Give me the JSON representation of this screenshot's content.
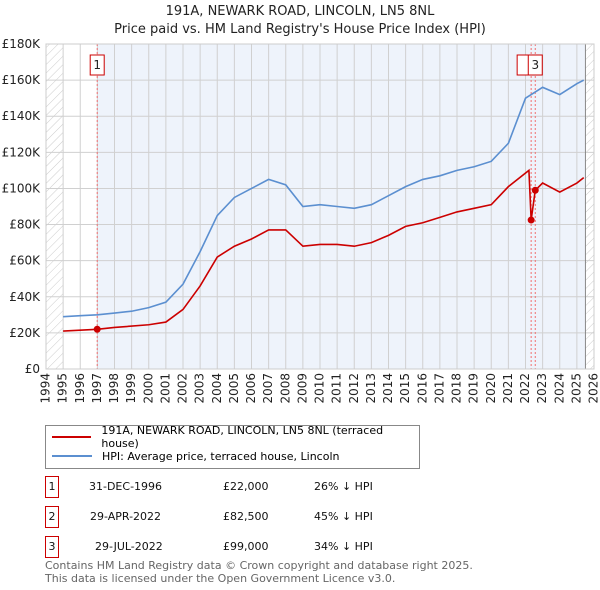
{
  "title": "191A, NEWARK ROAD, LINCOLN, LN5 8NL",
  "subtitle": "Price paid vs. HM Land Registry's House Price Index (HPI)",
  "chart_data": {
    "type": "line",
    "xlim": [
      1994,
      2026
    ],
    "ylim": [
      0,
      180000
    ],
    "x_ticks": [
      "1994",
      "1995",
      "1996",
      "1997",
      "1998",
      "1999",
      "2000",
      "2001",
      "2002",
      "2003",
      "2004",
      "2005",
      "2006",
      "2007",
      "2008",
      "2009",
      "2010",
      "2011",
      "2012",
      "2013",
      "2014",
      "2015",
      "2016",
      "2017",
      "2018",
      "2019",
      "2020",
      "2021",
      "2022",
      "2023",
      "2024",
      "2025",
      "2026"
    ],
    "y_ticks": [
      "£0",
      "£20K",
      "£40K",
      "£60K",
      "£80K",
      "£100K",
      "£120K",
      "£140K",
      "£160K",
      "£180K"
    ],
    "series": [
      {
        "name": "191A, NEWARK ROAD, LINCOLN, LN5 8NL (terraced house)",
        "color": "#cc0000",
        "x": [
          1995,
          1996.99,
          1998,
          2000,
          2001,
          2002,
          2003,
          2004,
          2005,
          2006,
          2007,
          2008,
          2009,
          2010,
          2011,
          2012,
          2013,
          2014,
          2015,
          2016,
          2017,
          2018,
          2019,
          2020,
          2021,
          2022.2,
          2022.33,
          2022.57,
          2023,
          2024,
          2025,
          2025.4
        ],
        "y": [
          21000,
          22000,
          23000,
          24500,
          26000,
          33000,
          46000,
          62000,
          68000,
          72000,
          77000,
          77000,
          68000,
          69000,
          69000,
          68000,
          70000,
          74000,
          79000,
          81000,
          84000,
          87000,
          89000,
          91000,
          101000,
          110000,
          82500,
          99000,
          103000,
          98000,
          103000,
          106000
        ]
      },
      {
        "name": "HPI: Average price, terraced house, Lincoln",
        "color": "#5b8fd0",
        "x": [
          1995,
          1996,
          1997,
          1998,
          1999,
          2000,
          2001,
          2002,
          2003,
          2004,
          2005,
          2006,
          2007,
          2008,
          2009,
          2010,
          2011,
          2012,
          2013,
          2014,
          2015,
          2016,
          2017,
          2018,
          2019,
          2020,
          2021,
          2022,
          2023,
          2024,
          2025,
          2025.4
        ],
        "y": [
          29000,
          29500,
          30000,
          31000,
          32000,
          34000,
          37000,
          47000,
          65000,
          85000,
          95000,
          100000,
          105000,
          102000,
          90000,
          91000,
          90000,
          89000,
          91000,
          96000,
          101000,
          105000,
          107000,
          110000,
          112000,
          115000,
          125000,
          150000,
          156000,
          152000,
          158000,
          160000
        ]
      }
    ],
    "sales": [
      {
        "label": "1",
        "x": 1996.99,
        "y": 22000
      },
      {
        "label": "2",
        "x": 2022.33,
        "y": 82500
      },
      {
        "label": "3",
        "x": 2022.57,
        "y": 99000
      }
    ]
  },
  "legend": [
    "191A, NEWARK ROAD, LINCOLN, LN5 8NL (terraced house)",
    "HPI: Average price, terraced house, Lincoln"
  ],
  "transactions": [
    {
      "num": "1",
      "date": "31-DEC-1996",
      "price": "£22,000",
      "hpi": "26% ↓ HPI"
    },
    {
      "num": "2",
      "date": "29-APR-2022",
      "price": "£82,500",
      "hpi": "45% ↓ HPI"
    },
    {
      "num": "3",
      "date": "29-JUL-2022",
      "price": "£99,000",
      "hpi": "34% ↓ HPI"
    }
  ],
  "footer": [
    "Contains HM Land Registry data © Crown copyright and database right 2025.",
    "This data is licensed under the Open Government Licence v3.0."
  ]
}
